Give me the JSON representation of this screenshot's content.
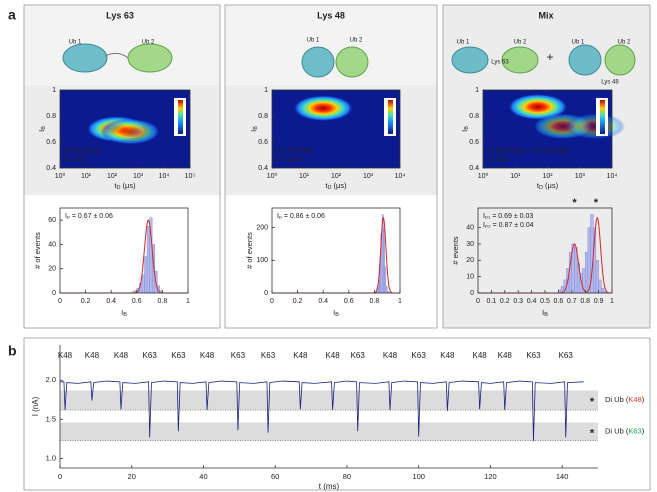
{
  "figure": {
    "panel_labels": [
      "a",
      "b"
    ],
    "columns": [
      {
        "title": "Lys 63",
        "color": "#1aa34a",
        "labels": [
          "Ub 1",
          "Ub 2"
        ]
      },
      {
        "title": "Lys 48",
        "color": "#e03c31",
        "labels": [
          "Ub 1",
          "Ub 2"
        ]
      },
      {
        "title": "Mix",
        "color": "#2b2fa8",
        "labels": [
          "Ub 1",
          "Ub 2",
          "Lys 63",
          "+",
          "Ub 1",
          "Ub 2",
          "Lys 48"
        ]
      }
    ]
  },
  "chart_data": [
    {
      "type": "heatmap",
      "log_x": true,
      "xlim": [
        1,
        100000
      ],
      "xticks": [
        {
          "value": 1,
          "label": "10⁰"
        },
        {
          "value": 10,
          "label": "10¹"
        },
        {
          "value": 100,
          "label": "10²"
        },
        {
          "value": 1000,
          "label": "10³"
        },
        {
          "value": 10000,
          "label": "10⁴"
        },
        {
          "value": 100000,
          "label": "10⁵"
        }
      ],
      "ylim": [
        0.4,
        1
      ],
      "yticks": [
        0.4,
        0.6,
        0.8,
        1
      ],
      "x_label": {
        "main": "t",
        "sub": "D",
        "unit": " (μs)"
      },
      "y_label": {
        "main": "I",
        "sub": "B"
      },
      "hotspots": [
        {
          "x": 150,
          "y": 0.7,
          "level": 1
        },
        {
          "x": 500,
          "y": 0.68,
          "level": 0.7
        }
      ],
      "annotation": [
        "Di Ub (K63)",
        "N =351"
      ]
    },
    {
      "type": "heatmap",
      "log_x": true,
      "xlim": [
        1,
        10000
      ],
      "xticks": [
        {
          "value": 1,
          "label": "10⁰"
        },
        {
          "value": 10,
          "label": "10¹"
        },
        {
          "value": 100,
          "label": "10²"
        },
        {
          "value": 1000,
          "label": "10³"
        },
        {
          "value": 10000,
          "label": "10⁴"
        }
      ],
      "ylim": [
        0.4,
        1
      ],
      "yticks": [
        0.4,
        0.6,
        0.8,
        1
      ],
      "x_label": {
        "main": "t",
        "sub": "D",
        "unit": " (μs)"
      },
      "y_label": {
        "main": "I",
        "sub": "B"
      },
      "hotspots": [
        {
          "x": 40,
          "y": 0.86,
          "level": 1
        }
      ],
      "annotation": [
        "Di Ub (K48)",
        "N =1037"
      ]
    },
    {
      "type": "heatmap",
      "log_x": true,
      "xlim": [
        1,
        10000
      ],
      "xticks": [
        {
          "value": 1,
          "label": "10⁰"
        },
        {
          "value": 10,
          "label": "10¹"
        },
        {
          "value": 100,
          "label": "10²"
        },
        {
          "value": 1000,
          "label": "10³"
        },
        {
          "value": 10000,
          "label": "10⁴"
        }
      ],
      "ylim": [
        0.4,
        1
      ],
      "yticks": [
        0.4,
        0.6,
        0.8,
        1
      ],
      "x_label": {
        "main": "t",
        "sub": "D",
        "unit": " (μs)"
      },
      "y_label": {
        "main": "I",
        "sub": "B"
      },
      "hotspots": [
        {
          "x": 50,
          "y": 0.87,
          "level": 1
        },
        {
          "x": 300,
          "y": 0.72,
          "level": 0.55
        },
        {
          "x": 3000,
          "y": 0.72,
          "level": 0.4
        }
      ],
      "annotation": [
        "Di Ub (K63) + Di Ub (K48)",
        "N =547"
      ]
    },
    {
      "type": "histogram",
      "color": "#b3b9ec",
      "bins": [
        0.56,
        0.58,
        0.6,
        0.62,
        0.64,
        0.66,
        0.68,
        0.7,
        0.72,
        0.74,
        0.76,
        0.78,
        0.8
      ],
      "counts": [
        1,
        2,
        4,
        8,
        15,
        30,
        55,
        62,
        40,
        18,
        6,
        2
      ],
      "xlim": [
        0,
        1
      ],
      "xticks": [
        0,
        0.2,
        0.4,
        0.6,
        0.8,
        1
      ],
      "ylim": [
        0,
        70
      ],
      "yticks": [
        0,
        20,
        40,
        60
      ],
      "x_label": {
        "main": "I",
        "sub": "B"
      },
      "y_label": "# of events",
      "fit": [
        {
          "center": 0.69,
          "width": 0.03,
          "height": 60
        }
      ],
      "fit_color": "#d62728",
      "annotation": [
        "Iₚ = 0.67 ± 0.06"
      ]
    },
    {
      "type": "histogram",
      "color": "#b3b9ec",
      "bins": [
        0.8,
        0.81,
        0.82,
        0.83,
        0.84,
        0.85,
        0.86,
        0.87,
        0.88,
        0.89,
        0.9,
        0.91,
        0.92,
        0.93
      ],
      "counts": [
        2,
        5,
        15,
        40,
        90,
        180,
        240,
        200,
        80,
        20,
        5,
        2,
        1
      ],
      "xlim": [
        0,
        1
      ],
      "xticks": [
        0,
        0.2,
        0.4,
        0.6,
        0.8,
        1
      ],
      "ylim": [
        0,
        260
      ],
      "yticks": [
        0,
        100,
        200
      ],
      "x_label": {
        "main": "I",
        "sub": "B"
      },
      "y_label": "# of events",
      "fit": [
        {
          "center": 0.87,
          "width": 0.02,
          "height": 230
        }
      ],
      "fit_color": "#d62728",
      "annotation": [
        "Iₚ = 0.86 ± 0.06"
      ]
    },
    {
      "type": "histogram",
      "color": "#b3b9ec",
      "bins": [
        0.6,
        0.62,
        0.64,
        0.66,
        0.68,
        0.7,
        0.72,
        0.74,
        0.76,
        0.78,
        0.8,
        0.82,
        0.84,
        0.86,
        0.88,
        0.9,
        0.92,
        0.94,
        0.96
      ],
      "counts": [
        2,
        4,
        8,
        15,
        25,
        30,
        28,
        18,
        12,
        15,
        25,
        40,
        48,
        40,
        20,
        8,
        3,
        1
      ],
      "xlim": [
        0,
        1
      ],
      "xticks": [
        0,
        0.1,
        0.2,
        0.3,
        0.4,
        0.5,
        0.6,
        0.7,
        0.8,
        0.9,
        1
      ],
      "ylim": [
        0,
        52
      ],
      "yticks": [
        0,
        10,
        20,
        30,
        40
      ],
      "x_label": {
        "main": "I",
        "sub": "B"
      },
      "y_label": "# events",
      "fit": [
        {
          "center": 0.72,
          "width": 0.03,
          "height": 30
        },
        {
          "center": 0.89,
          "width": 0.025,
          "height": 46
        }
      ],
      "fit_color": "#d62728",
      "annotation": [
        "Iₚ₁ = 0.69 ± 0.03",
        "Iₚ₂ = 0.87 ± 0.04"
      ],
      "markers": [
        {
          "text": "*",
          "x": 0.72,
          "color": "#1aa34a"
        },
        {
          "text": "*",
          "x": 0.88,
          "color": "#e03c31"
        }
      ]
    },
    {
      "type": "line",
      "color": "#1a237e",
      "x": [
        0,
        1.1,
        1.4,
        1.9,
        5,
        8.6,
        8.9,
        9.4,
        13,
        16.7,
        17,
        17.5,
        21,
        24.7,
        25,
        25.5,
        29,
        32.7,
        33,
        33.5,
        37,
        40.7,
        41,
        41.5,
        45,
        49.3,
        49.6,
        50.1,
        54,
        57.7,
        58,
        58.5,
        62,
        66.7,
        67,
        67.5,
        71,
        75.7,
        76,
        76.5,
        80,
        82.7,
        83,
        83.5,
        88,
        91.7,
        92,
        92.5,
        96,
        99.7,
        100,
        100.5,
        104,
        107.7,
        108,
        108.5,
        112,
        116.7,
        117,
        117.5,
        120,
        123.7,
        124,
        124.5,
        128,
        131.7,
        132,
        132.5,
        137,
        140.7,
        141,
        141.5,
        146
      ],
      "y": [
        1.98,
        1.98,
        1.62,
        1.97,
        1.96,
        1.98,
        1.74,
        1.97,
        1.99,
        1.98,
        1.63,
        1.97,
        1.96,
        1.98,
        1.27,
        1.97,
        1.99,
        1.98,
        1.35,
        1.97,
        1.96,
        1.98,
        1.62,
        1.97,
        1.99,
        1.98,
        1.36,
        1.97,
        1.96,
        1.98,
        1.33,
        1.97,
        1.99,
        1.98,
        1.63,
        1.97,
        1.96,
        1.98,
        1.62,
        1.97,
        1.99,
        1.98,
        1.35,
        1.97,
        1.96,
        1.98,
        1.62,
        1.97,
        1.99,
        1.98,
        1.28,
        1.97,
        1.96,
        1.98,
        1.61,
        1.97,
        1.99,
        1.98,
        1.63,
        1.97,
        1.96,
        1.98,
        1.62,
        1.97,
        1.99,
        1.98,
        1.22,
        1.97,
        1.96,
        1.98,
        1.27,
        1.97,
        1.98
      ],
      "xlim": [
        0,
        150
      ],
      "xticks": [
        0,
        20,
        40,
        60,
        80,
        100,
        120,
        140
      ],
      "ylim": [
        0.88,
        2.45
      ],
      "yticks": [
        {
          "value": 1,
          "label": "1.0"
        },
        1.5,
        {
          "value": 2,
          "label": "2.0"
        }
      ],
      "x_label": "t (ms)",
      "y_label": "I (nA)",
      "events": {
        "x": [
          1.4,
          8.9,
          17,
          25,
          33,
          41,
          49.6,
          58,
          67,
          76,
          83,
          92,
          100,
          108,
          117,
          124,
          132,
          141
        ],
        "labels": [
          "K48",
          "K48",
          "K48",
          "K63",
          "K63",
          "K48",
          "K63",
          "K63",
          "K48",
          "K48",
          "K63",
          "K48",
          "K63",
          "K48",
          "K48",
          "K48",
          "K63",
          "K63"
        ]
      },
      "label_colors": {
        "K48": "#e03c31",
        "K63": "#1aa34a"
      },
      "bands": [
        {
          "low": 1.62,
          "high": 1.87,
          "marker": "*",
          "prefix": "Di Ub (",
          "tag": "K48",
          "suffix": ")"
        },
        {
          "low": 1.23,
          "high": 1.46,
          "marker": "*",
          "prefix": "Di Ub (",
          "tag": "K63",
          "suffix": ")"
        }
      ]
    }
  ]
}
